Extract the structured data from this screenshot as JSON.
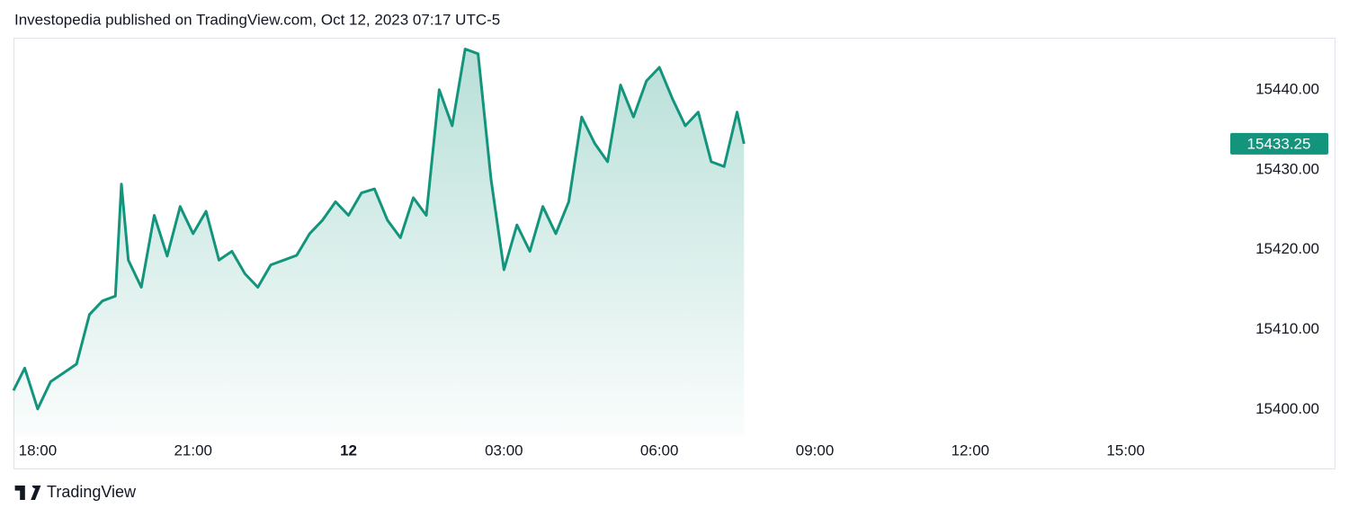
{
  "chart_data": {
    "type": "line",
    "title": "Investopedia published on TradingView.com, Oct 12, 2023 07:17 UTC-5",
    "x": [
      "2023-10-11T17:32",
      "2023-10-11T17:45",
      "2023-10-11T18:00",
      "2023-10-11T18:15",
      "2023-10-11T18:30",
      "2023-10-11T18:45",
      "2023-10-11T19:00",
      "2023-10-11T19:15",
      "2023-10-11T19:30",
      "2023-10-11T19:37",
      "2023-10-11T19:45",
      "2023-10-11T20:00",
      "2023-10-11T20:15",
      "2023-10-11T20:30",
      "2023-10-11T20:45",
      "2023-10-11T21:00",
      "2023-10-11T21:15",
      "2023-10-11T21:30",
      "2023-10-11T21:45",
      "2023-10-11T22:00",
      "2023-10-11T22:15",
      "2023-10-11T22:30",
      "2023-10-11T22:45",
      "2023-10-11T23:00",
      "2023-10-11T23:15",
      "2023-10-11T23:30",
      "2023-10-11T23:45",
      "2023-10-12T00:00",
      "2023-10-12T00:15",
      "2023-10-12T00:30",
      "2023-10-12T00:45",
      "2023-10-12T01:00",
      "2023-10-12T01:15",
      "2023-10-12T01:30",
      "2023-10-12T01:45",
      "2023-10-12T02:00",
      "2023-10-12T02:15",
      "2023-10-12T02:30",
      "2023-10-12T02:45",
      "2023-10-12T03:00",
      "2023-10-12T03:15",
      "2023-10-12T03:30",
      "2023-10-12T03:45",
      "2023-10-12T04:00",
      "2023-10-12T04:15",
      "2023-10-12T04:30",
      "2023-10-12T04:45",
      "2023-10-12T05:00",
      "2023-10-12T05:15",
      "2023-10-12T05:30",
      "2023-10-12T05:45",
      "2023-10-12T06:00",
      "2023-10-12T06:15",
      "2023-10-12T06:30",
      "2023-10-12T06:45",
      "2023-10-12T07:00",
      "2023-10-12T07:15",
      "2023-10-12T07:30",
      "2023-10-12T07:38"
    ],
    "values": [
      15402.4,
      15405.2,
      15400.1,
      15403.5,
      15404.6,
      15405.7,
      15411.9,
      15413.6,
      15414.2,
      15428.2,
      15418.7,
      15415.3,
      15424.3,
      15419.2,
      15425.4,
      15422.0,
      15424.8,
      15418.7,
      15419.8,
      15417.0,
      15415.3,
      15418.1,
      15418.7,
      15419.3,
      15422.0,
      15423.7,
      15426.0,
      15424.3,
      15427.1,
      15427.6,
      15423.7,
      15421.5,
      15426.5,
      15424.3,
      15440.0,
      15435.5,
      15445.1,
      15444.5,
      15428.8,
      15417.5,
      15423.1,
      15419.8,
      15425.4,
      15422.0,
      15426.0,
      15436.6,
      15433.3,
      15431.0,
      15440.6,
      15436.6,
      15441.1,
      15442.8,
      15438.9,
      15435.5,
      15437.2,
      15431.0,
      15430.4,
      15437.2,
      15433.25
    ],
    "color": "#12957c",
    "xlim": [
      "2023-10-11T17:32",
      "2023-10-12T16:58"
    ],
    "xticks": [
      {
        "value": "2023-10-11T18:00",
        "label": "18:00"
      },
      {
        "value": "2023-10-11T21:00",
        "label": "21:00"
      },
      {
        "value": "2023-10-12T00:00",
        "label": "12"
      },
      {
        "value": "2023-10-12T03:00",
        "label": "03:00"
      },
      {
        "value": "2023-10-12T06:00",
        "label": "06:00"
      },
      {
        "value": "2023-10-12T09:00",
        "label": "09:00"
      },
      {
        "value": "2023-10-12T12:00",
        "label": "12:00"
      },
      {
        "value": "2023-10-12T15:00",
        "label": "15:00"
      }
    ],
    "ylim": [
      15396.7,
      15446.5
    ],
    "yticks": [
      {
        "value": 15400,
        "label": "15400.00"
      },
      {
        "value": 15410,
        "label": "15410.00"
      },
      {
        "value": 15420,
        "label": "15420.00"
      },
      {
        "value": 15430,
        "label": "15430.00"
      },
      {
        "value": 15440,
        "label": "15440.00"
      }
    ],
    "brand": "TradingView"
  }
}
